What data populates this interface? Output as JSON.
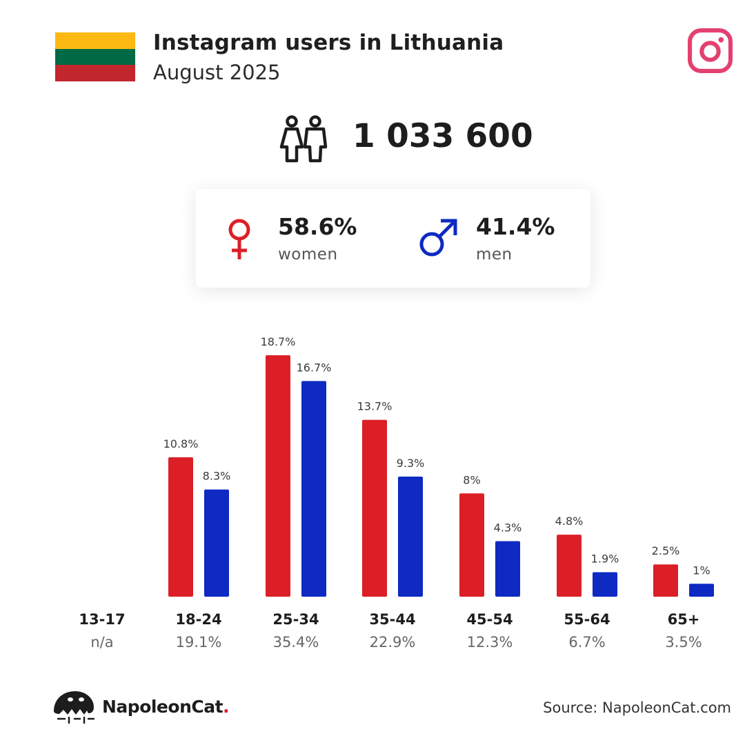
{
  "header": {
    "title": "Instagram users in Lithuania",
    "subtitle": "August 2025"
  },
  "flag_colors": [
    "#FDB913",
    "#006A44",
    "#C1272D"
  ],
  "icons": {
    "brand": "instagram-icon",
    "users": "people-icon",
    "female": "female-symbol-icon",
    "male": "male-symbol-icon"
  },
  "total_users": "1 033 600",
  "gender": {
    "women": {
      "percent": "58.6%",
      "label": "women",
      "color": "#DC1F26"
    },
    "men": {
      "percent": "41.4%",
      "label": "men",
      "color": "#0E2AC2"
    }
  },
  "chart_data": {
    "type": "bar",
    "categories": [
      "13-17",
      "18-24",
      "25-34",
      "35-44",
      "45-54",
      "55-64",
      "65+"
    ],
    "category_totals": [
      "n/a",
      "19.1%",
      "35.4%",
      "22.9%",
      "12.3%",
      "6.7%",
      "3.5%"
    ],
    "series": [
      {
        "name": "women",
        "color": "#DC1F26",
        "values": [
          null,
          10.8,
          18.7,
          13.7,
          8,
          4.8,
          2.5
        ],
        "labels": [
          "",
          "10.8%",
          "18.7%",
          "13.7%",
          "8%",
          "4.8%",
          "2.5%"
        ]
      },
      {
        "name": "men",
        "color": "#0E2AC2",
        "values": [
          null,
          8.3,
          16.7,
          9.3,
          4.3,
          1.9,
          1
        ],
        "labels": [
          "",
          "8.3%",
          "16.7%",
          "9.3%",
          "4.3%",
          "1.9%",
          "1%"
        ]
      }
    ],
    "ylim": [
      0,
      18.7
    ]
  },
  "footer": {
    "brand_name": "NapoleonCat",
    "brand_dot": ".",
    "source": "Source: NapoleonCat.com"
  }
}
